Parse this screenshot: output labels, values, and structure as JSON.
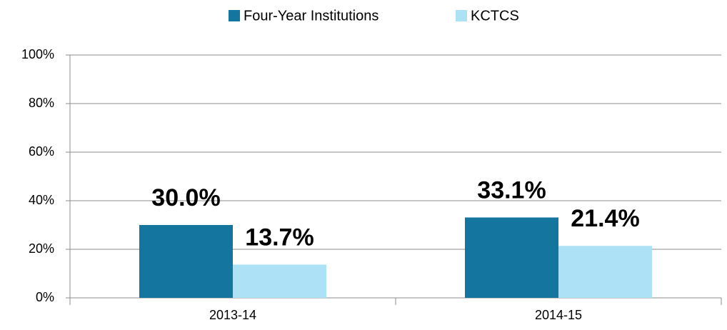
{
  "chart_data": {
    "type": "bar",
    "categories": [
      "2013-14",
      "2014-15"
    ],
    "series": [
      {
        "name": "Four-Year Institutions",
        "color": "#14759e",
        "values": [
          30.0,
          33.1
        ],
        "value_labels": [
          "30.0%",
          "33.1%"
        ]
      },
      {
        "name": "KCTCS",
        "color": "#ade2f6",
        "values": [
          13.7,
          21.4
        ],
        "value_labels": [
          "13.7%",
          "21.4%"
        ]
      }
    ],
    "ylim": [
      0,
      100
    ],
    "yticks": [
      {
        "value": 0,
        "label": "0%"
      },
      {
        "value": 20,
        "label": "20%"
      },
      {
        "value": 40,
        "label": "40%"
      },
      {
        "value": 60,
        "label": "60%"
      },
      {
        "value": 80,
        "label": "80%"
      },
      {
        "value": 100,
        "label": "100%"
      }
    ],
    "grid": true,
    "legend": "top"
  }
}
